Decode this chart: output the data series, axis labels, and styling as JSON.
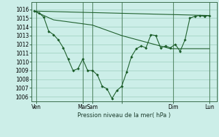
{
  "background_color": "#cceee8",
  "grid_color": "#99ccbb",
  "line_color": "#1a5c28",
  "marker_color": "#1a5c28",
  "ylabel_ticks": [
    1006,
    1007,
    1008,
    1009,
    1010,
    1011,
    1012,
    1013,
    1014,
    1015,
    1016
  ],
  "ylim": [
    1005.5,
    1016.8
  ],
  "xlim": [
    -0.5,
    37.5
  ],
  "xtick_positions": [
    0.5,
    10,
    12,
    18,
    28.5,
    36
  ],
  "xtick_labels": [
    "Ven",
    "Mar",
    "Sam",
    "",
    "Dim",
    "Lun"
  ],
  "vline_positions": [
    0.5,
    10,
    12,
    18,
    28.5,
    36
  ],
  "xlabel": "Pression niveau de la mer( hPa )",
  "series1_x": [
    0,
    36
  ],
  "series1_y": [
    1015.8,
    1015.3
  ],
  "series2_x": [
    0,
    4,
    8,
    12,
    18,
    28,
    36
  ],
  "series2_y": [
    1015.8,
    1014.8,
    1014.5,
    1014.2,
    1013.0,
    1011.5,
    1011.5
  ],
  "series3_x": [
    0,
    1,
    2,
    3,
    4,
    5,
    6,
    7,
    8,
    9,
    10,
    11,
    12,
    13,
    14,
    15,
    16,
    17,
    18,
    19,
    20,
    21,
    22,
    23,
    24,
    25,
    26,
    27,
    28,
    29,
    30,
    31,
    32,
    33,
    34,
    35,
    36
  ],
  "series3_y": [
    1015.8,
    1015.6,
    1015.1,
    1013.5,
    1013.1,
    1012.5,
    1011.6,
    1010.3,
    1009.0,
    1009.2,
    1010.3,
    1009.0,
    1009.0,
    1008.5,
    1007.2,
    1006.9,
    1005.8,
    1006.7,
    1007.2,
    1008.8,
    1010.6,
    1011.5,
    1011.8,
    1011.6,
    1013.1,
    1013.0,
    1011.6,
    1011.8,
    1011.6,
    1012.0,
    1011.2,
    1012.5,
    1015.0,
    1015.2,
    1015.3,
    1015.2,
    1015.3
  ]
}
